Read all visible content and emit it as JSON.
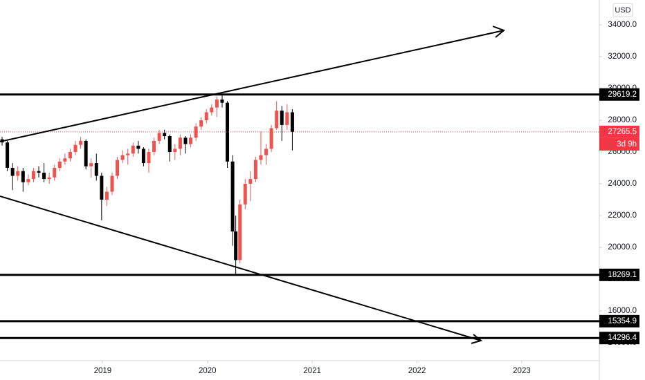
{
  "chart_data": {
    "type": "candlestick",
    "currency": "USD",
    "ylim": [
      12870,
      35565
    ],
    "yticks": [
      {
        "value": 14000,
        "label": "14000.0"
      },
      {
        "value": 16000,
        "label": "16000.0"
      },
      {
        "value": 18000,
        "label": "18000.0"
      },
      {
        "value": 20000,
        "label": "20000.0"
      },
      {
        "value": 22000,
        "label": "22000.0"
      },
      {
        "value": 24000,
        "label": "24000.0"
      },
      {
        "value": 26000,
        "label": "26000.0"
      },
      {
        "value": 28000,
        "label": "28000.0"
      },
      {
        "value": 30000,
        "label": "30000.0"
      },
      {
        "value": 32000,
        "label": "32000.0"
      },
      {
        "value": 34000,
        "label": "34000.0"
      }
    ],
    "xlim": [
      2018.02,
      2023.74
    ],
    "xticks": [
      2019,
      2020,
      2021,
      2022,
      2023
    ],
    "up_color": "#ef5350",
    "down_color": "#000000",
    "x": [
      2018.04,
      2018.09,
      2018.14,
      2018.19,
      2018.24,
      2018.29,
      2018.34,
      2018.39,
      2018.44,
      2018.49,
      2018.54,
      2018.59,
      2018.64,
      2018.69,
      2018.74,
      2018.79,
      2018.84,
      2018.89,
      2018.94,
      2018.99,
      2019.04,
      2019.09,
      2019.14,
      2019.19,
      2019.24,
      2019.29,
      2019.34,
      2019.39,
      2019.44,
      2019.49,
      2019.54,
      2019.59,
      2019.64,
      2019.69,
      2019.74,
      2019.79,
      2019.84,
      2019.89,
      2019.94,
      2019.99,
      2020.04,
      2020.09,
      2020.14,
      2020.19,
      2020.24,
      2020.27,
      2020.31,
      2020.36,
      2020.41,
      2020.46,
      2020.51,
      2020.56,
      2020.61,
      2020.66,
      2020.71,
      2020.76,
      2020.81
    ],
    "open": [
      26800,
      26600,
      25000,
      24500,
      24800,
      24100,
      24300,
      24800,
      24700,
      24300,
      24400,
      25000,
      25400,
      25600,
      26000,
      26450,
      26700,
      25100,
      25300,
      24500,
      23000,
      23500,
      24500,
      25500,
      25800,
      25900,
      26400,
      26200,
      25300,
      26000,
      26700,
      27200,
      27000,
      26000,
      26200,
      26900,
      26500,
      26900,
      27600,
      28000,
      28500,
      28800,
      29300,
      29100,
      25400,
      21000,
      19200,
      22700,
      24000,
      24300,
      25500,
      25800,
      26200,
      27500,
      28600,
      27700,
      28500
    ],
    "high": [
      26950,
      26700,
      25300,
      25100,
      25000,
      24600,
      25000,
      25100,
      25300,
      24700,
      25200,
      25600,
      25900,
      26200,
      26700,
      26950,
      26800,
      25600,
      25900,
      24700,
      23800,
      24700,
      25700,
      26100,
      26200,
      26600,
      26700,
      26300,
      26200,
      26900,
      27400,
      27400,
      27100,
      26500,
      27100,
      27000,
      27100,
      27800,
      28200,
      28700,
      29000,
      29500,
      29570,
      29200,
      25800,
      22000,
      23000,
      24300,
      24800,
      25700,
      27300,
      26500,
      27700,
      29200,
      28900,
      29000,
      28700
    ],
    "low": [
      26400,
      24800,
      23600,
      24200,
      23500,
      23900,
      24100,
      24400,
      24100,
      24000,
      24200,
      24800,
      25200,
      25400,
      25800,
      26200,
      24900,
      24400,
      24200,
      21700,
      22600,
      23300,
      24300,
      25300,
      25200,
      25700,
      25900,
      25100,
      24700,
      25800,
      26500,
      26800,
      25400,
      25500,
      25800,
      25900,
      26300,
      26700,
      27400,
      27800,
      28300,
      28200,
      28800,
      25000,
      20100,
      18250,
      19000,
      22400,
      22900,
      24100,
      25200,
      25200,
      26000,
      27400,
      26700,
      27400,
      26100
    ],
    "close": [
      26600,
      25000,
      24500,
      24800,
      24100,
      24300,
      24800,
      24700,
      24300,
      24400,
      25000,
      25400,
      25600,
      26000,
      26450,
      26700,
      25100,
      25300,
      24500,
      23000,
      23500,
      24500,
      25500,
      25800,
      25900,
      26400,
      26200,
      25300,
      26000,
      26700,
      27200,
      27000,
      26000,
      26200,
      26900,
      26500,
      26900,
      27600,
      28000,
      28500,
      28800,
      29300,
      29100,
      25400,
      21000,
      19200,
      22700,
      24000,
      24300,
      25500,
      25800,
      26200,
      27500,
      28600,
      27700,
      28500,
      27265.5
    ],
    "current_price": 27265.5,
    "countdown": "3d 9h",
    "levels": [
      29619.2,
      18269.1,
      15354.9,
      14296.4
    ]
  }
}
